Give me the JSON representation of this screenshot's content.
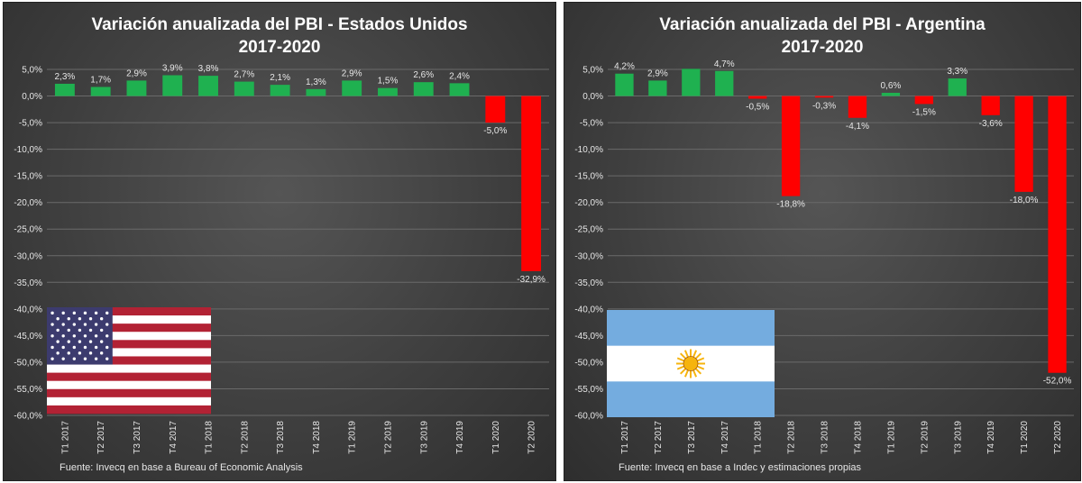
{
  "colors": {
    "positive": "#1fb150",
    "negative": "#ff0000",
    "grid": "#6a6a6a",
    "text": "#e6e6e6"
  },
  "chart_data": [
    {
      "type": "bar",
      "title": [
        "Variación anualizada del PBI - Estados Unidos",
        "2017-2020"
      ],
      "categories": [
        "T1 2017",
        "T2 2017",
        "T3 2017",
        "T4 2017",
        "T1 2018",
        "T2 2018",
        "T3 2018",
        "T4 2018",
        "T1 2019",
        "T2 2019",
        "T3 2019",
        "T4 2019",
        "T1 2020",
        "T2 2020"
      ],
      "values": [
        2.3,
        1.7,
        2.9,
        3.9,
        3.8,
        2.7,
        2.1,
        1.3,
        2.9,
        1.5,
        2.6,
        2.4,
        -5.0,
        -32.9
      ],
      "data_labels": [
        "2,3%",
        "1,7%",
        "2,9%",
        "3,9%",
        "3,8%",
        "2,7%",
        "2,1%",
        "1,3%",
        "2,9%",
        "1,5%",
        "2,6%",
        "2,4%",
        "-5,0%",
        "-32,9%"
      ],
      "ylim": [
        -60,
        5
      ],
      "yticks": [
        5,
        0,
        -5,
        -10,
        -15,
        -20,
        -25,
        -30,
        -35,
        -40,
        -45,
        -50,
        -55,
        -60
      ],
      "ytick_labels": [
        "5,0%",
        "0,0%",
        "-5,0%",
        "-10,0%",
        "-15,0%",
        "-20,0%",
        "-25,0%",
        "-30,0%",
        "-35,0%",
        "-40,0%",
        "-45,0%",
        "-50,0%",
        "-55,0%",
        "-60,0%"
      ],
      "grid": true,
      "flag": "usa-flag",
      "source": "Fuente: Invecq en base a Bureau of Economic Analysis"
    },
    {
      "type": "bar",
      "title": [
        "Variación anualizada del PBI - Argentina",
        "2017-2020"
      ],
      "categories": [
        "T1 2017",
        "T2 2017",
        "T3 2017",
        "T4 2017",
        "T1 2018",
        "T2 2018",
        "T3 2018",
        "T4 2018",
        "T1 2019",
        "T2 2019",
        "T3 2019",
        "T4 2019",
        "T1 2020",
        "T2 2020"
      ],
      "values": [
        4.2,
        2.9,
        5.1,
        4.7,
        -0.5,
        -18.8,
        -0.3,
        -4.1,
        0.6,
        -1.5,
        3.3,
        -3.6,
        -18.0,
        -52.0
      ],
      "data_labels": [
        "4,2%",
        "2,9%",
        "",
        "4,7%",
        "-0,5%",
        "-18,8%",
        "-0,3%",
        "-4,1%",
        "0,6%",
        "-1,5%",
        "3,3%",
        "-3,6%",
        "-18,0%",
        "-52,0%"
      ],
      "ylim": [
        -60,
        5
      ],
      "yticks": [
        5,
        0,
        -5,
        -10,
        -15,
        -20,
        -25,
        -30,
        -35,
        -40,
        -45,
        -50,
        -55,
        -60
      ],
      "ytick_labels": [
        "5,0%",
        "0,0%",
        "-5,0%",
        "-10,0%",
        "-15,0%",
        "-20,0%",
        "-25,0%",
        "-30,0%",
        "-35,0%",
        "-40,0%",
        "-45,0%",
        "-50,0%",
        "-55,0%",
        "-60,0%"
      ],
      "grid": true,
      "flag": "argentina-flag",
      "source": "Fuente: Invecq en base a Indec y estimaciones propias"
    }
  ]
}
